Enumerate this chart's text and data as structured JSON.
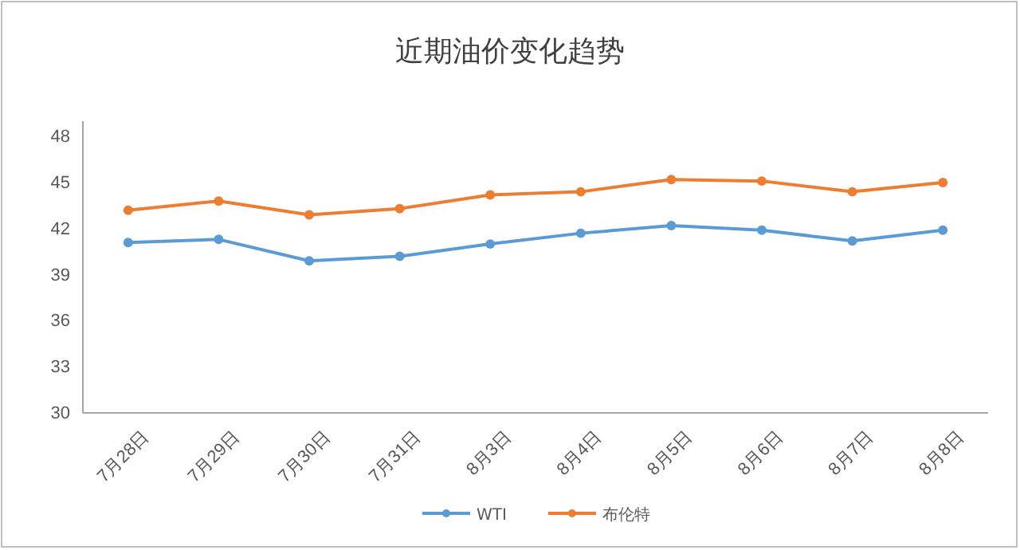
{
  "chart_data": {
    "type": "line",
    "title": "近期油价变化趋势",
    "categories": [
      "7月28日",
      "7月29日",
      "7月30日",
      "7月31日",
      "8月3日",
      "8月4日",
      "8月5日",
      "8月6日",
      "8月7日",
      "8月8日"
    ],
    "series": [
      {
        "name": "WTI",
        "color": "#5b9bd5",
        "values": [
          41.1,
          41.3,
          39.9,
          40.2,
          41.0,
          41.7,
          42.2,
          41.9,
          41.2,
          41.9
        ]
      },
      {
        "name": "布伦特",
        "color": "#ed7d31",
        "values": [
          43.2,
          43.8,
          42.9,
          43.3,
          44.2,
          44.4,
          45.2,
          45.1,
          44.4,
          45.0
        ]
      }
    ],
    "ylim": [
      30,
      49
    ],
    "yticks": [
      30,
      33,
      36,
      39,
      42,
      45,
      48
    ],
    "grid": false,
    "legend": "bottom",
    "marker": "circle",
    "line_style": "solid"
  }
}
